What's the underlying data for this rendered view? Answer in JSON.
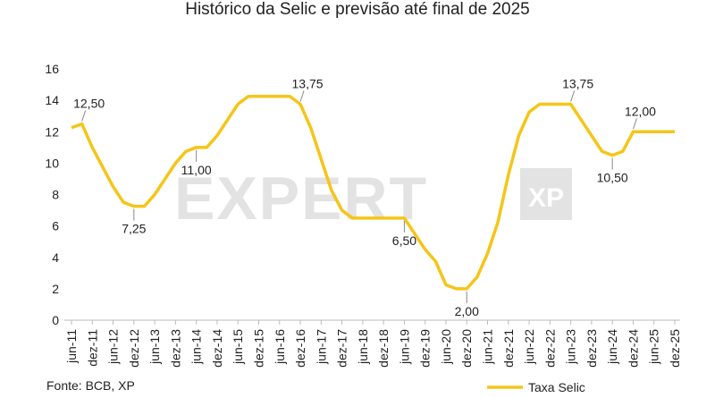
{
  "chart_data": {
    "type": "line",
    "title": "Histórico da Selic e previsão até final de 2025",
    "source": "Fonte: BCB, XP",
    "watermark": [
      "EXPERT",
      "XP"
    ],
    "categories": [
      "jun-11",
      null,
      "dez-11",
      null,
      "jun-12",
      null,
      "dez-12",
      null,
      "jun-13",
      null,
      "dez-13",
      null,
      "jun-14",
      null,
      "dez-14",
      null,
      "jun-15",
      null,
      "dez-15",
      null,
      "jun-16",
      null,
      "dez-16",
      null,
      "jun-17",
      null,
      "dez-17",
      null,
      "jun-18",
      null,
      "dez-18",
      null,
      "jun-19",
      null,
      "dez-19",
      null,
      "jun-20",
      null,
      "dez-20",
      null,
      "jun-21",
      null,
      "dez-21",
      null,
      "jun-22",
      null,
      "dez-22",
      null,
      "jun-23",
      null,
      "dez-23",
      null,
      "jun-24",
      null,
      "dez-24",
      null,
      "jun-25",
      null,
      "dez-25"
    ],
    "series": [
      {
        "name": "Taxa Selic",
        "color": "#f5c518",
        "values": [
          12.25,
          12.5,
          11.0,
          9.75,
          8.5,
          7.5,
          7.25,
          7.25,
          8.0,
          9.0,
          10.0,
          10.75,
          11.0,
          11.0,
          11.75,
          12.75,
          13.75,
          14.25,
          14.25,
          14.25,
          14.25,
          14.25,
          13.75,
          12.25,
          10.25,
          8.25,
          7.0,
          6.5,
          6.5,
          6.5,
          6.5,
          6.5,
          6.5,
          5.5,
          4.5,
          3.75,
          2.25,
          2.0,
          2.0,
          2.75,
          4.25,
          6.25,
          9.25,
          11.75,
          13.25,
          13.75,
          13.75,
          13.75,
          13.75,
          12.75,
          11.75,
          10.75,
          10.5,
          10.75,
          12.0,
          12.0,
          12.0,
          12.0,
          12.0
        ],
        "value_labels": [
          null,
          "12,50",
          null,
          null,
          null,
          null,
          "7,25",
          null,
          null,
          null,
          null,
          null,
          "11,00",
          null,
          null,
          null,
          null,
          null,
          null,
          null,
          null,
          null,
          "13,75",
          null,
          null,
          null,
          null,
          null,
          null,
          null,
          null,
          null,
          "6,50",
          null,
          null,
          null,
          null,
          null,
          "2,00",
          null,
          null,
          null,
          null,
          null,
          null,
          null,
          null,
          null,
          "13,75",
          null,
          null,
          null,
          "10,50",
          null,
          "12,00",
          null,
          null,
          null,
          null
        ]
      }
    ],
    "ylim": [
      0,
      16
    ],
    "yticks": [
      0,
      2,
      4,
      6,
      8,
      10,
      12,
      14,
      16
    ],
    "grid": false,
    "legend": "bottom-right"
  }
}
